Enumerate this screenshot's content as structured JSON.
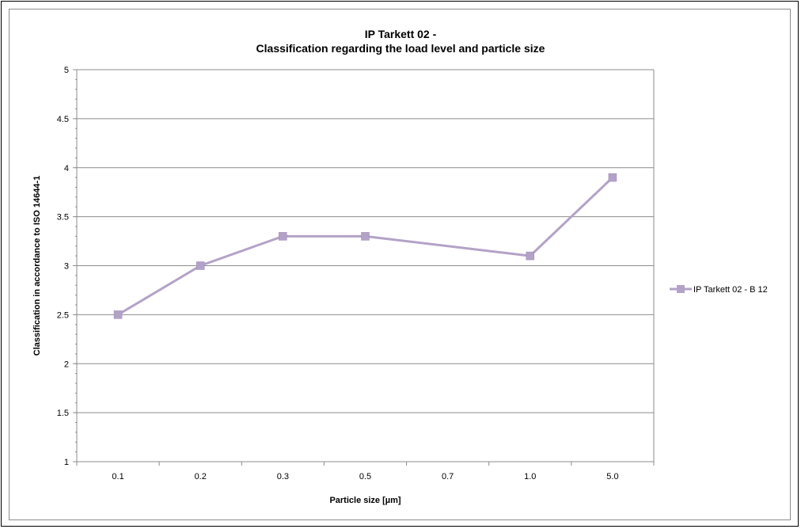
{
  "chart_data": {
    "type": "line",
    "title_line1": "IP Tarkett 02 -",
    "title_line2": "Classification regarding the load level and particle size",
    "xlabel": "Particle size [µm]",
    "ylabel": "Classification in accordance to ISO 14644-1",
    "categories": [
      "0.1",
      "0.2",
      "0.3",
      "0.5",
      "0.7",
      "1.0",
      "5.0"
    ],
    "ylim": [
      1,
      5
    ],
    "yticks": [
      "1",
      "1.5",
      "2",
      "2.5",
      "3",
      "3.5",
      "4",
      "4.5",
      "5"
    ],
    "grid": true,
    "legend_position": "right",
    "series": [
      {
        "name": "IP Tarkett 02 - B 12",
        "color": "#b3a2c7",
        "marker": "square",
        "values": [
          2.5,
          3.0,
          3.3,
          3.3,
          null,
          3.1,
          3.9
        ]
      }
    ]
  }
}
